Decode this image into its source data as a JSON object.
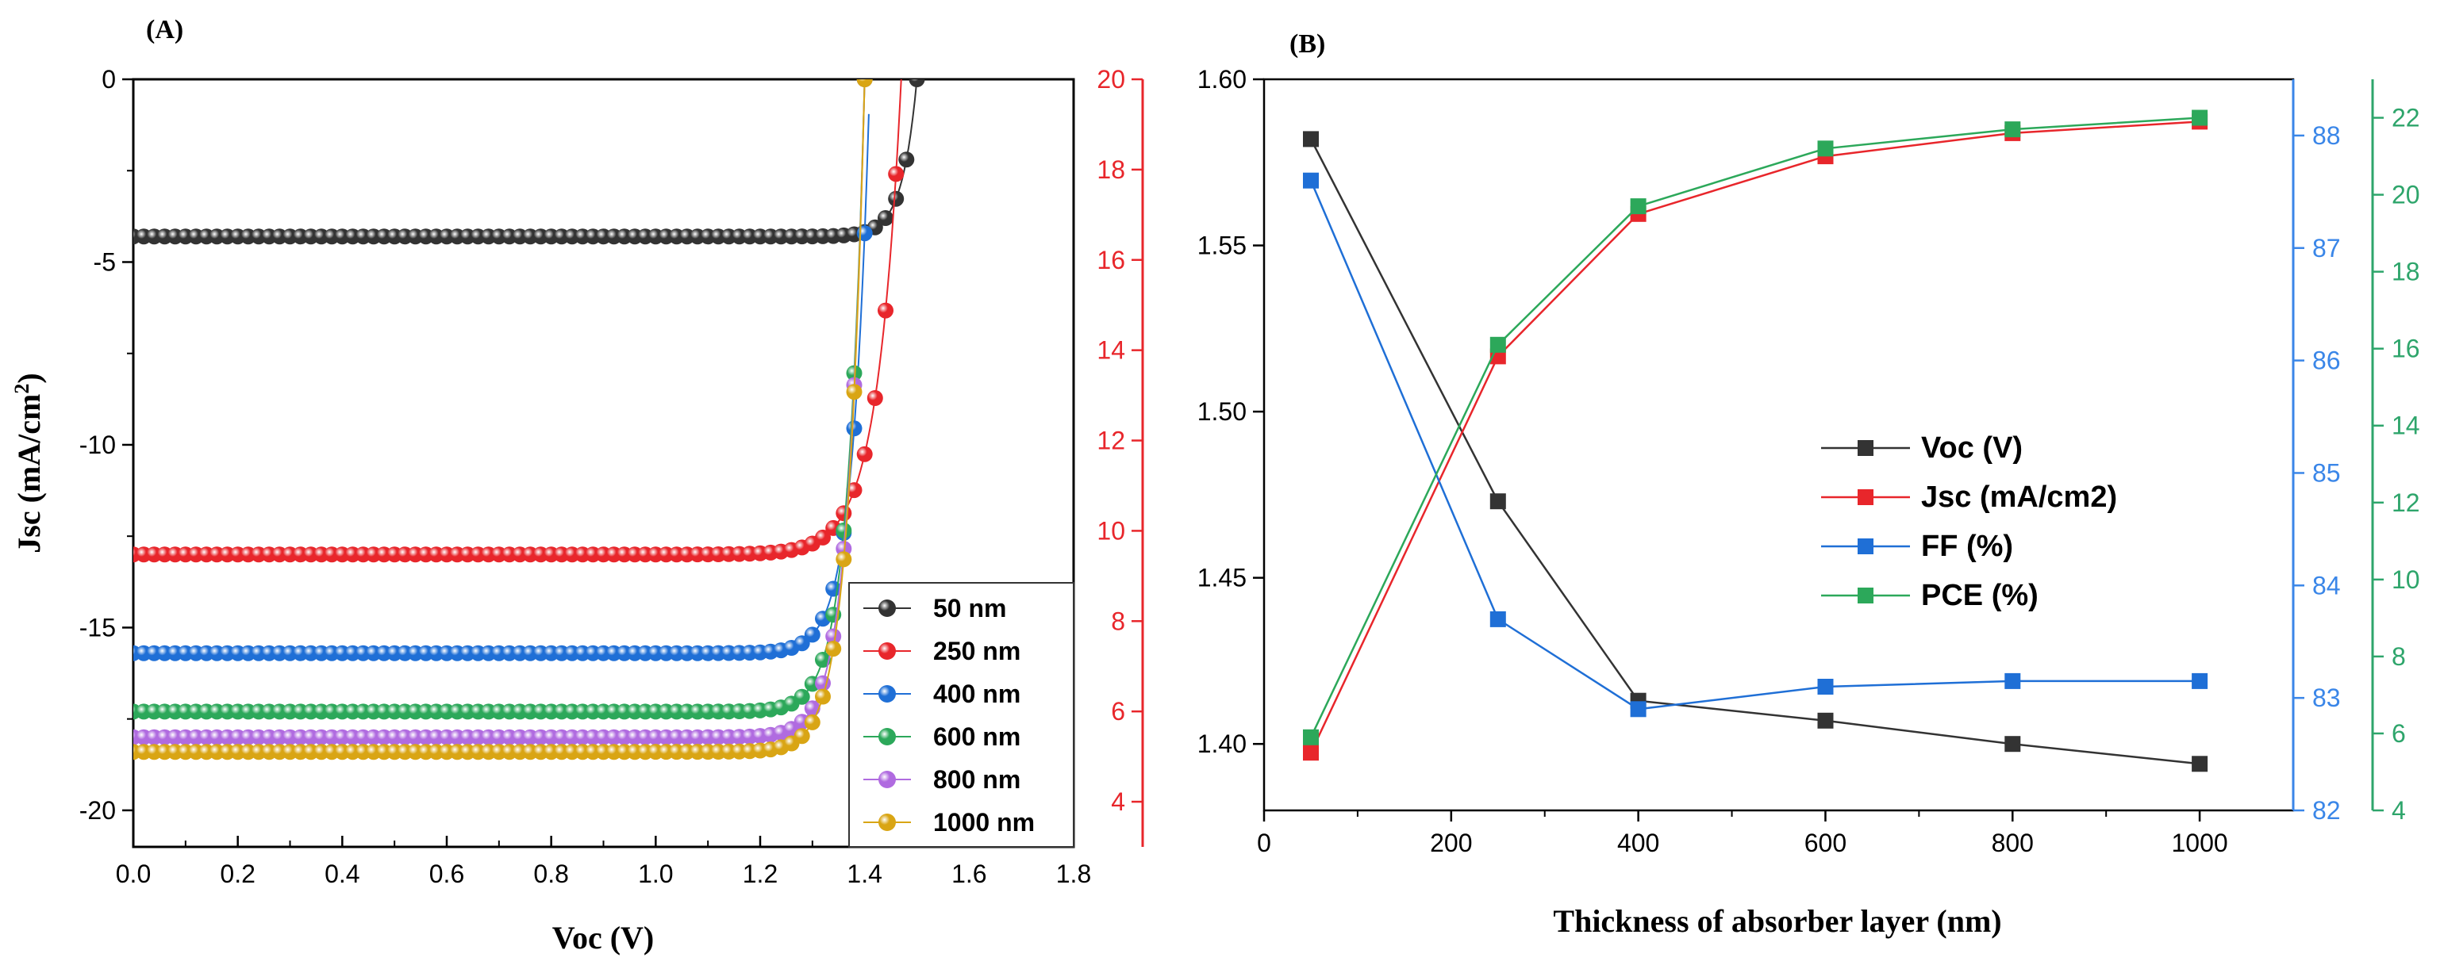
{
  "colors": {
    "black": "#333333",
    "red": "#e8262b",
    "blue": "#1f6fd6",
    "green": "#2ca85a",
    "purple": "#b06be0",
    "gold": "#d9a514",
    "axis_red": "#e8262b",
    "axis_blue": "#3a86e8",
    "axis_green": "#2ea56b",
    "plot_a_bg": "#ffffff"
  },
  "chart_data": [
    {
      "type": "scatter",
      "panel_label": "(A)",
      "title": "",
      "xlabel": "Voc (V)",
      "ylabel": "Jsc (mA/cm²)",
      "ylabel_main": "Jsc (mA/cm",
      "ylabel_sup": "2",
      "ylabel_end": ")",
      "xlim": [
        0.0,
        1.8
      ],
      "ylim_left": [
        -21,
        0
      ],
      "ylim_right": [
        3,
        20
      ],
      "x_ticks": [
        "0.0",
        "0.2",
        "0.4",
        "0.6",
        "0.8",
        "1.0",
        "1.2",
        "1.4",
        "1.6",
        "1.8"
      ],
      "y_ticks_left": [
        "0",
        "-5",
        "-10",
        "-15",
        "-20"
      ],
      "y_ticks_right": [
        "20",
        "18",
        "16",
        "14",
        "12",
        "10",
        "8",
        "6",
        "4"
      ],
      "legend_position": "bottom-right",
      "series": [
        {
          "name": "50 nm",
          "color_key": "black",
          "jsc": -4.3,
          "voc": 1.5,
          "axis": "left"
        },
        {
          "name": "250 nm",
          "color_key": "red",
          "jsc": -13.0,
          "voc": 1.47,
          "axis": "left"
        },
        {
          "name": "400 nm",
          "color_key": "blue",
          "jsc": -15.7,
          "voc": 1.41,
          "axis": "left"
        },
        {
          "name": "600 nm",
          "color_key": "green",
          "jsc": -17.3,
          "voc": 1.4,
          "axis": "left"
        },
        {
          "name": "800 nm",
          "color_key": "purple",
          "jsc": -18.0,
          "voc": 1.4,
          "axis": "left"
        },
        {
          "name": "1000 nm",
          "color_key": "gold",
          "jsc": -18.4,
          "voc": 1.4,
          "axis": "left"
        }
      ]
    },
    {
      "type": "line",
      "panel_label": "(B)",
      "title": "",
      "xlabel": "Thickness of absorber layer (nm)",
      "ylabel": "",
      "x": [
        50,
        250,
        400,
        600,
        800,
        1000
      ],
      "xlim": [
        0,
        1100
      ],
      "x_ticks": [
        "0",
        "200",
        "400",
        "600",
        "800",
        "1000"
      ],
      "legend_position": "center-right",
      "axes": {
        "left": {
          "ylim": [
            1.38,
            1.6
          ],
          "ticks": [
            "1.60",
            "1.55",
            "1.50",
            "1.45",
            "1.40"
          ]
        },
        "right_blue": {
          "ylim": [
            82,
            88.5
          ],
          "ticks": [
            "88",
            "87",
            "86",
            "85",
            "84",
            "83",
            "82"
          ]
        },
        "right_green": {
          "ylim": [
            4,
            23
          ],
          "ticks": [
            "22",
            "20",
            "18",
            "16",
            "14",
            "12",
            "10",
            "8",
            "6",
            "4"
          ]
        }
      },
      "series": [
        {
          "name": "Voc (V)",
          "color_key": "black",
          "axis": "left",
          "values": [
            1.582,
            1.473,
            1.413,
            1.407,
            1.4,
            1.394
          ]
        },
        {
          "name": "Jsc (mA/cm2)",
          "color_key": "red",
          "axis": "right_green",
          "values": [
            5.5,
            15.8,
            19.5,
            21.0,
            21.6,
            21.9
          ]
        },
        {
          "name": "FF (%)",
          "color_key": "blue",
          "axis": "right_blue",
          "values": [
            87.6,
            83.7,
            82.9,
            83.1,
            83.15,
            83.15
          ]
        },
        {
          "name": "PCE (%)",
          "color_key": "green",
          "axis": "right_green",
          "values": [
            5.9,
            16.1,
            19.7,
            21.2,
            21.7,
            22.0
          ]
        }
      ]
    }
  ]
}
